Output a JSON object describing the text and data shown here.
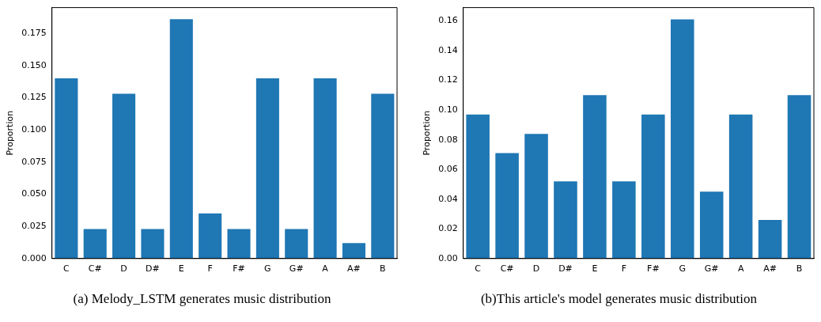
{
  "chart_data": [
    {
      "type": "bar",
      "ylabel": "Proportion",
      "categories": [
        "C",
        "C#",
        "D",
        "D#",
        "E",
        "F",
        "F#",
        "G",
        "G#",
        "A",
        "A#",
        "B"
      ],
      "values": [
        0.14,
        0.023,
        0.128,
        0.023,
        0.186,
        0.035,
        0.023,
        0.14,
        0.023,
        0.14,
        0.012,
        0.128
      ],
      "color": "#1f77b4",
      "ylim": [
        0,
        0.195
      ],
      "yticks": [
        {
          "value": 0,
          "label": "0.000"
        },
        {
          "value": 0.025,
          "label": "0.025"
        },
        {
          "value": 0.05,
          "label": "0.050"
        },
        {
          "value": 0.075,
          "label": "0.075"
        },
        {
          "value": 0.1,
          "label": "0.100"
        },
        {
          "value": 0.125,
          "label": "0.125"
        },
        {
          "value": 0.15,
          "label": "0.150"
        },
        {
          "value": 0.175,
          "label": "0.175"
        }
      ],
      "annotations": [
        "(a) Melody_LSTM generates music distribution"
      ]
    },
    {
      "type": "bar",
      "ylabel": "Proportion",
      "categories": [
        "C",
        "C#",
        "D",
        "D#",
        "E",
        "F",
        "F#",
        "G",
        "G#",
        "A",
        "A#",
        "B"
      ],
      "values": [
        0.097,
        0.071,
        0.084,
        0.052,
        0.11,
        0.052,
        0.097,
        0.161,
        0.045,
        0.097,
        0.026,
        0.11
      ],
      "color": "#1f77b4",
      "ylim": [
        0,
        0.169
      ],
      "yticks": [
        {
          "value": 0,
          "label": "0.00"
        },
        {
          "value": 0.02,
          "label": "0.02"
        },
        {
          "value": 0.04,
          "label": "0.04"
        },
        {
          "value": 0.06,
          "label": "0.06"
        },
        {
          "value": 0.08,
          "label": "0.08"
        },
        {
          "value": 0.1,
          "label": "0.10"
        },
        {
          "value": 0.12,
          "label": "0.12"
        },
        {
          "value": 0.14,
          "label": "0.14"
        },
        {
          "value": 0.16,
          "label": "0.16"
        }
      ],
      "annotations": [
        "(b)This article's model generates music distribution"
      ]
    }
  ]
}
